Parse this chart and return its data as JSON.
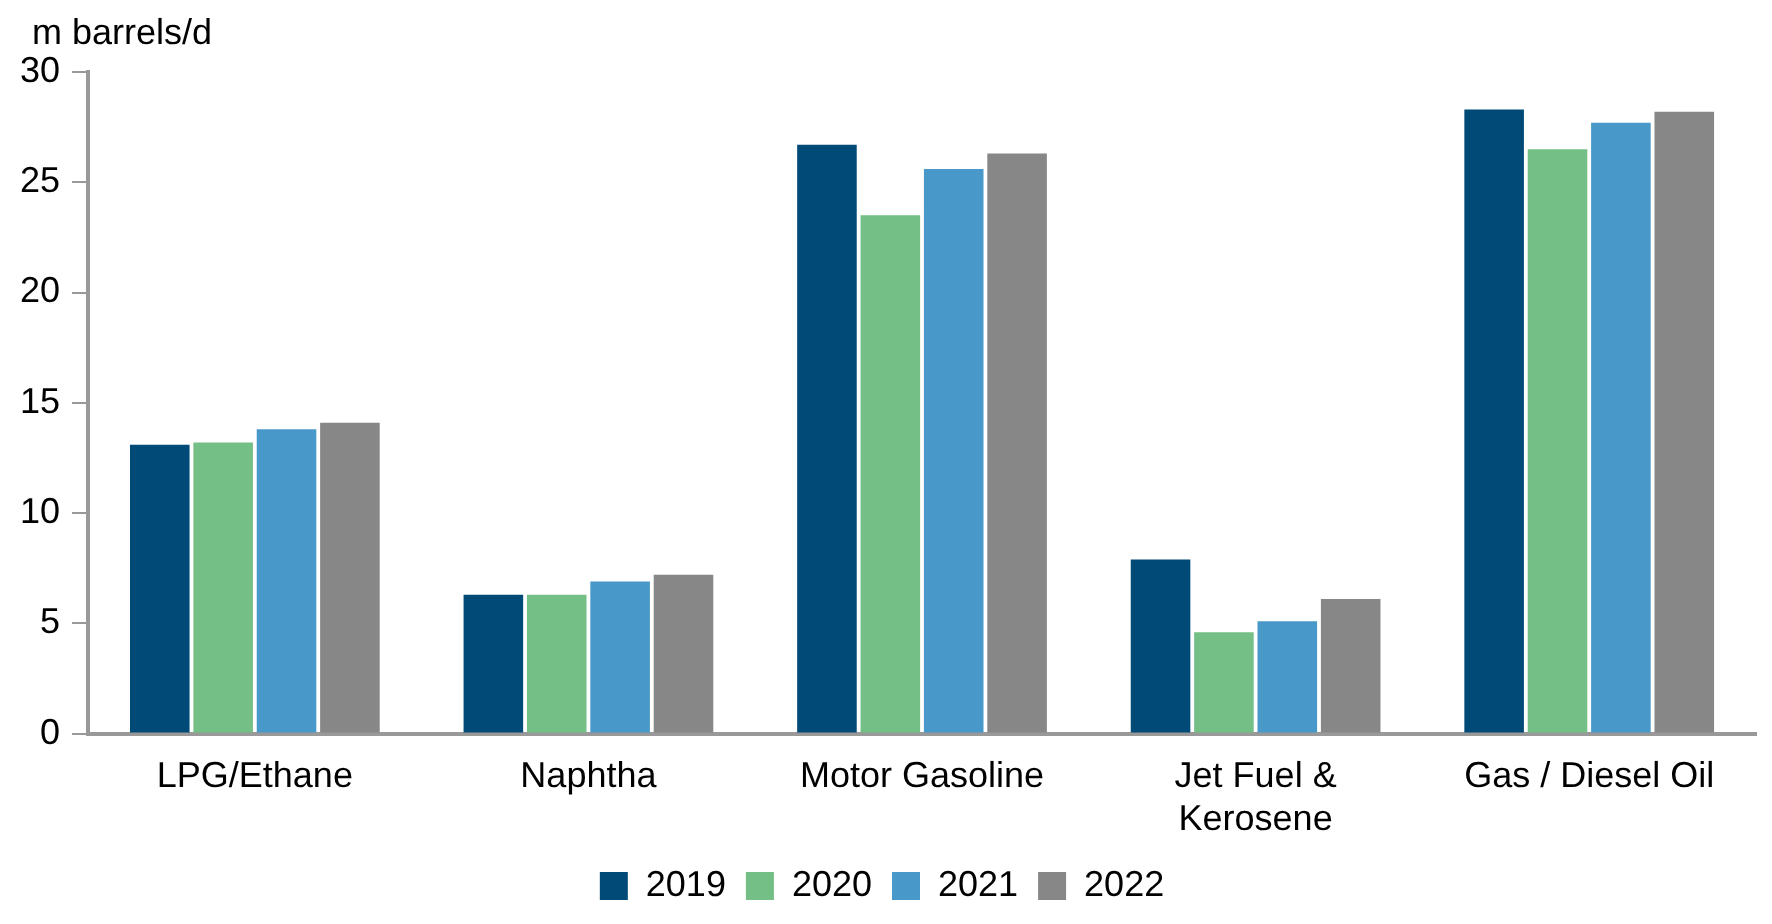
{
  "chart_data": {
    "type": "bar",
    "ylabel": "m barrels/d",
    "categories": [
      "LPG/Ethane",
      "Naphtha",
      "Motor Gasoline",
      "Jet Fuel & Kerosene",
      "Gas / Diesel Oil"
    ],
    "series": [
      {
        "name": "2019",
        "color": "#004a77",
        "values": [
          13.1,
          6.3,
          26.7,
          7.9,
          28.3
        ]
      },
      {
        "name": "2020",
        "color": "#74bf86",
        "values": [
          13.2,
          6.3,
          23.5,
          4.6,
          26.5
        ]
      },
      {
        "name": "2021",
        "color": "#4898c9",
        "values": [
          13.8,
          6.9,
          25.6,
          5.1,
          27.7
        ]
      },
      {
        "name": "2022",
        "color": "#878787",
        "values": [
          14.1,
          7.2,
          26.3,
          6.1,
          28.2
        ]
      }
    ],
    "ylim": [
      0,
      30
    ],
    "yticks": [
      0,
      5,
      10,
      15,
      20,
      25,
      30
    ],
    "grid": false,
    "legend": "bottom"
  }
}
